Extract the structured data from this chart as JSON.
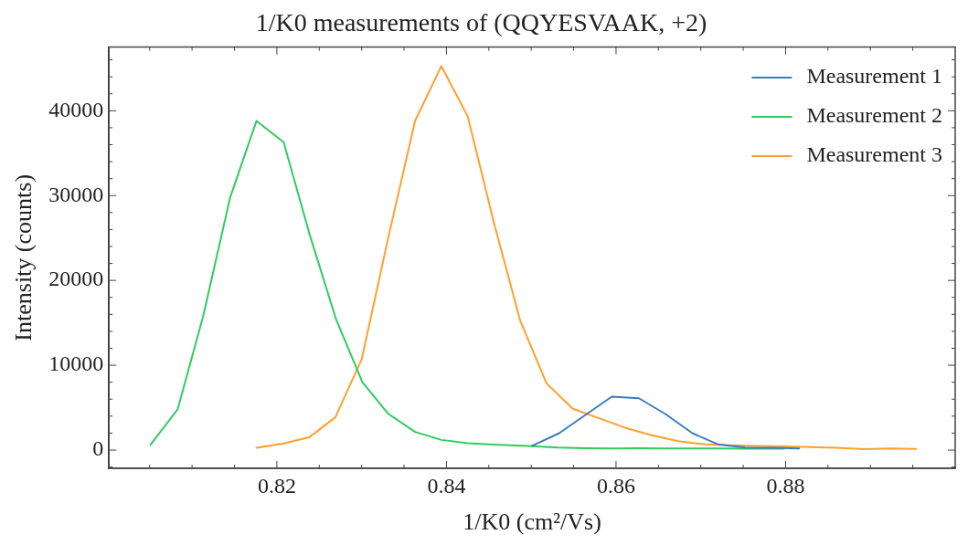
{
  "chart_data": {
    "type": "line",
    "title": "1/K0 measurements of (QQYESVAAK, +2)",
    "xlabel": "1/K0 (cm²/Vs)",
    "ylabel": "Intensity (counts)",
    "xlim": [
      0.8002,
      0.9
    ],
    "ylim": [
      -2150,
      47500
    ],
    "xticks": [
      {
        "value": 0.805,
        "label": null
      },
      {
        "value": 0.81,
        "label": null
      },
      {
        "value": 0.815,
        "label": null
      },
      0.82,
      {
        "value": 0.825,
        "label": null
      },
      {
        "value": 0.83,
        "label": null
      },
      {
        "value": 0.835,
        "label": null
      },
      0.84,
      {
        "value": 0.845,
        "label": null
      },
      {
        "value": 0.85,
        "label": null
      },
      {
        "value": 0.855,
        "label": null
      },
      0.86,
      {
        "value": 0.865,
        "label": null
      },
      {
        "value": 0.87,
        "label": null
      },
      {
        "value": 0.875,
        "label": null
      },
      0.88,
      {
        "value": 0.885,
        "label": null
      },
      {
        "value": 0.89,
        "label": null
      },
      {
        "value": 0.895,
        "label": null
      }
    ],
    "yticks": [
      {
        "value": -2000,
        "label": null
      },
      0,
      {
        "value": 2000,
        "label": null
      },
      {
        "value": 4000,
        "label": null
      },
      {
        "value": 6000,
        "label": null
      },
      {
        "value": 8000,
        "label": null
      },
      10000,
      {
        "value": 12000,
        "label": null
      },
      {
        "value": 14000,
        "label": null
      },
      {
        "value": 16000,
        "label": null
      },
      {
        "value": 18000,
        "label": null
      },
      20000,
      {
        "value": 22000,
        "label": null
      },
      {
        "value": 24000,
        "label": null
      },
      {
        "value": 26000,
        "label": null
      },
      {
        "value": 28000,
        "label": null
      },
      30000,
      {
        "value": 32000,
        "label": null
      },
      {
        "value": 34000,
        "label": null
      },
      {
        "value": 36000,
        "label": null
      },
      {
        "value": 38000,
        "label": null
      },
      40000,
      {
        "value": 42000,
        "label": null
      },
      {
        "value": 44000,
        "label": null
      },
      {
        "value": 46000,
        "label": null
      }
    ],
    "grid": false,
    "legend": "top right",
    "marker": "none",
    "line_style": "solid",
    "series": [
      {
        "name": "Measurement 1",
        "color": "#3b7dbf",
        "x": [
          0.8501,
          0.8533,
          0.8595,
          0.8627,
          0.8659,
          0.869,
          0.872,
          0.8752,
          0.8784,
          0.8816
        ],
        "values": [
          490,
          1990,
          6300,
          6110,
          4200,
          1990,
          680,
          300,
          260,
          190
        ]
      },
      {
        "name": "Measurement 2",
        "color": "#2ecc5f",
        "x": [
          0.8051,
          0.8083,
          0.8113,
          0.8145,
          0.8176,
          0.8208,
          0.8239,
          0.827,
          0.8301,
          0.8331,
          0.8363,
          0.8394,
          0.8425,
          0.8456,
          0.8501,
          0.8532,
          0.8564,
          0.8595,
          0.8627,
          0.8659,
          0.869,
          0.872,
          0.8752,
          0.8784,
          0.8798
        ],
        "values": [
          640,
          4800,
          15750,
          29800,
          38800,
          36300,
          25300,
          15370,
          7990,
          4310,
          2140,
          1200,
          820,
          640,
          450,
          300,
          230,
          200,
          220,
          200,
          190,
          180,
          170,
          170,
          160
        ]
      },
      {
        "name": "Measurement 3",
        "color": "#ffa02e",
        "x": [
          0.8176,
          0.8207,
          0.8238,
          0.8269,
          0.83,
          0.8332,
          0.8363,
          0.8394,
          0.8425,
          0.8456,
          0.8487,
          0.8518,
          0.8549,
          0.858,
          0.8611,
          0.8642,
          0.8673,
          0.8705,
          0.8736,
          0.8767,
          0.8798,
          0.883,
          0.8861,
          0.8892,
          0.8923,
          0.8954
        ],
        "values": [
          260,
          750,
          1500,
          3860,
          10690,
          25300,
          38800,
          45260,
          39370,
          26800,
          15260,
          7870,
          4870,
          3750,
          2620,
          1760,
          1050,
          670,
          560,
          490,
          420,
          350,
          260,
          110,
          190,
          150
        ]
      }
    ]
  }
}
